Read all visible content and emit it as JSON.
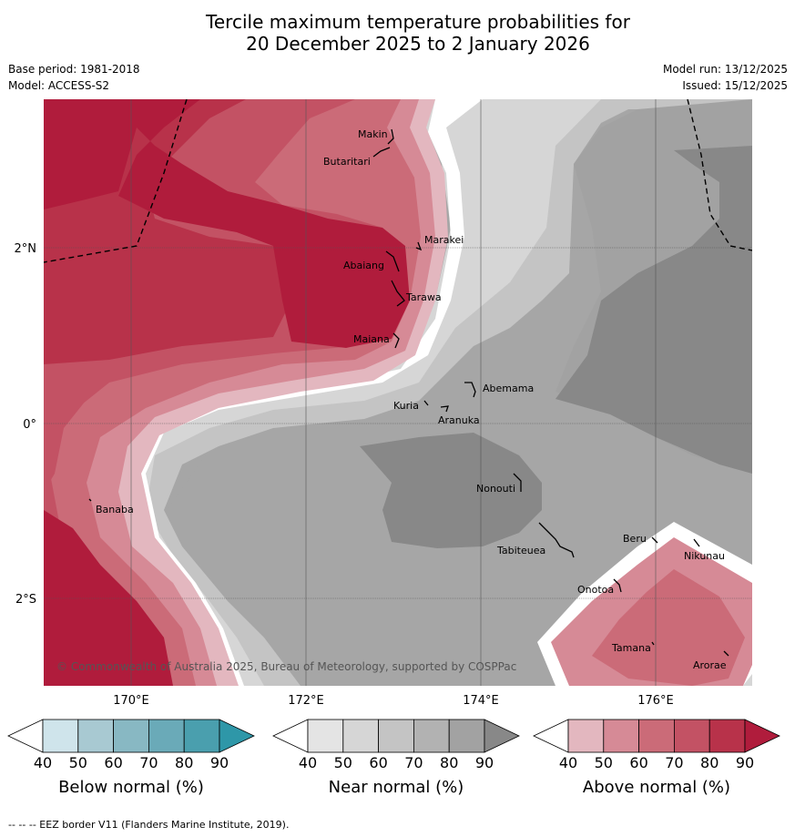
{
  "title": {
    "line1": "Tercile maximum temperature probabilities for",
    "line2": "20 December 2025 to 2 January 2026"
  },
  "meta": {
    "base_period": "Base period: 1981-2018",
    "model": "Model: ACCESS-S2",
    "model_run": "Model run: 13/12/2025",
    "issued": "Issued: 15/12/2025"
  },
  "map": {
    "copyright": "© Commonwealth of Australia 2025, Bureau of Meteorology, supported by COSPPac",
    "lat_labels": [
      "2°N",
      "0°",
      "2°S"
    ],
    "lon_labels": [
      "170°E",
      "172°E",
      "174°E",
      "176°E"
    ],
    "places": [
      "Makin",
      "Butaritari",
      "Marakei",
      "Abaiang",
      "Tarawa",
      "Maiana",
      "Abemama",
      "Kuria",
      "Aranuka",
      "Nonouti",
      "Banaba",
      "Beru",
      "Nikunau",
      "Tabiteuea",
      "Onotoa",
      "Tamana",
      "Arorae"
    ]
  },
  "colorbars": [
    {
      "label": "Below normal (%)",
      "ticks": [
        "40",
        "50",
        "60",
        "70",
        "80",
        "90"
      ],
      "colors": [
        "#cfe4eb",
        "#a8c9d2",
        "#88b8c3",
        "#6aaab8",
        "#4a9fae",
        "#2e97a8"
      ]
    },
    {
      "label": "Near normal (%)",
      "ticks": [
        "40",
        "50",
        "60",
        "70",
        "80",
        "90"
      ],
      "colors": [
        "#e4e4e4",
        "#d6d6d6",
        "#c4c4c4",
        "#b2b2b2",
        "#a2a2a2",
        "#888888"
      ]
    },
    {
      "label": "Above normal (%)",
      "ticks": [
        "40",
        "50",
        "60",
        "70",
        "80",
        "90"
      ],
      "colors": [
        "#e3b7bf",
        "#d68a96",
        "#cb6b78",
        "#c35264",
        "#b8324a",
        "#b01c3c"
      ]
    }
  ],
  "footer": "--  --  -- EEZ border V11 (Flanders Marine Institute, 2019)."
}
